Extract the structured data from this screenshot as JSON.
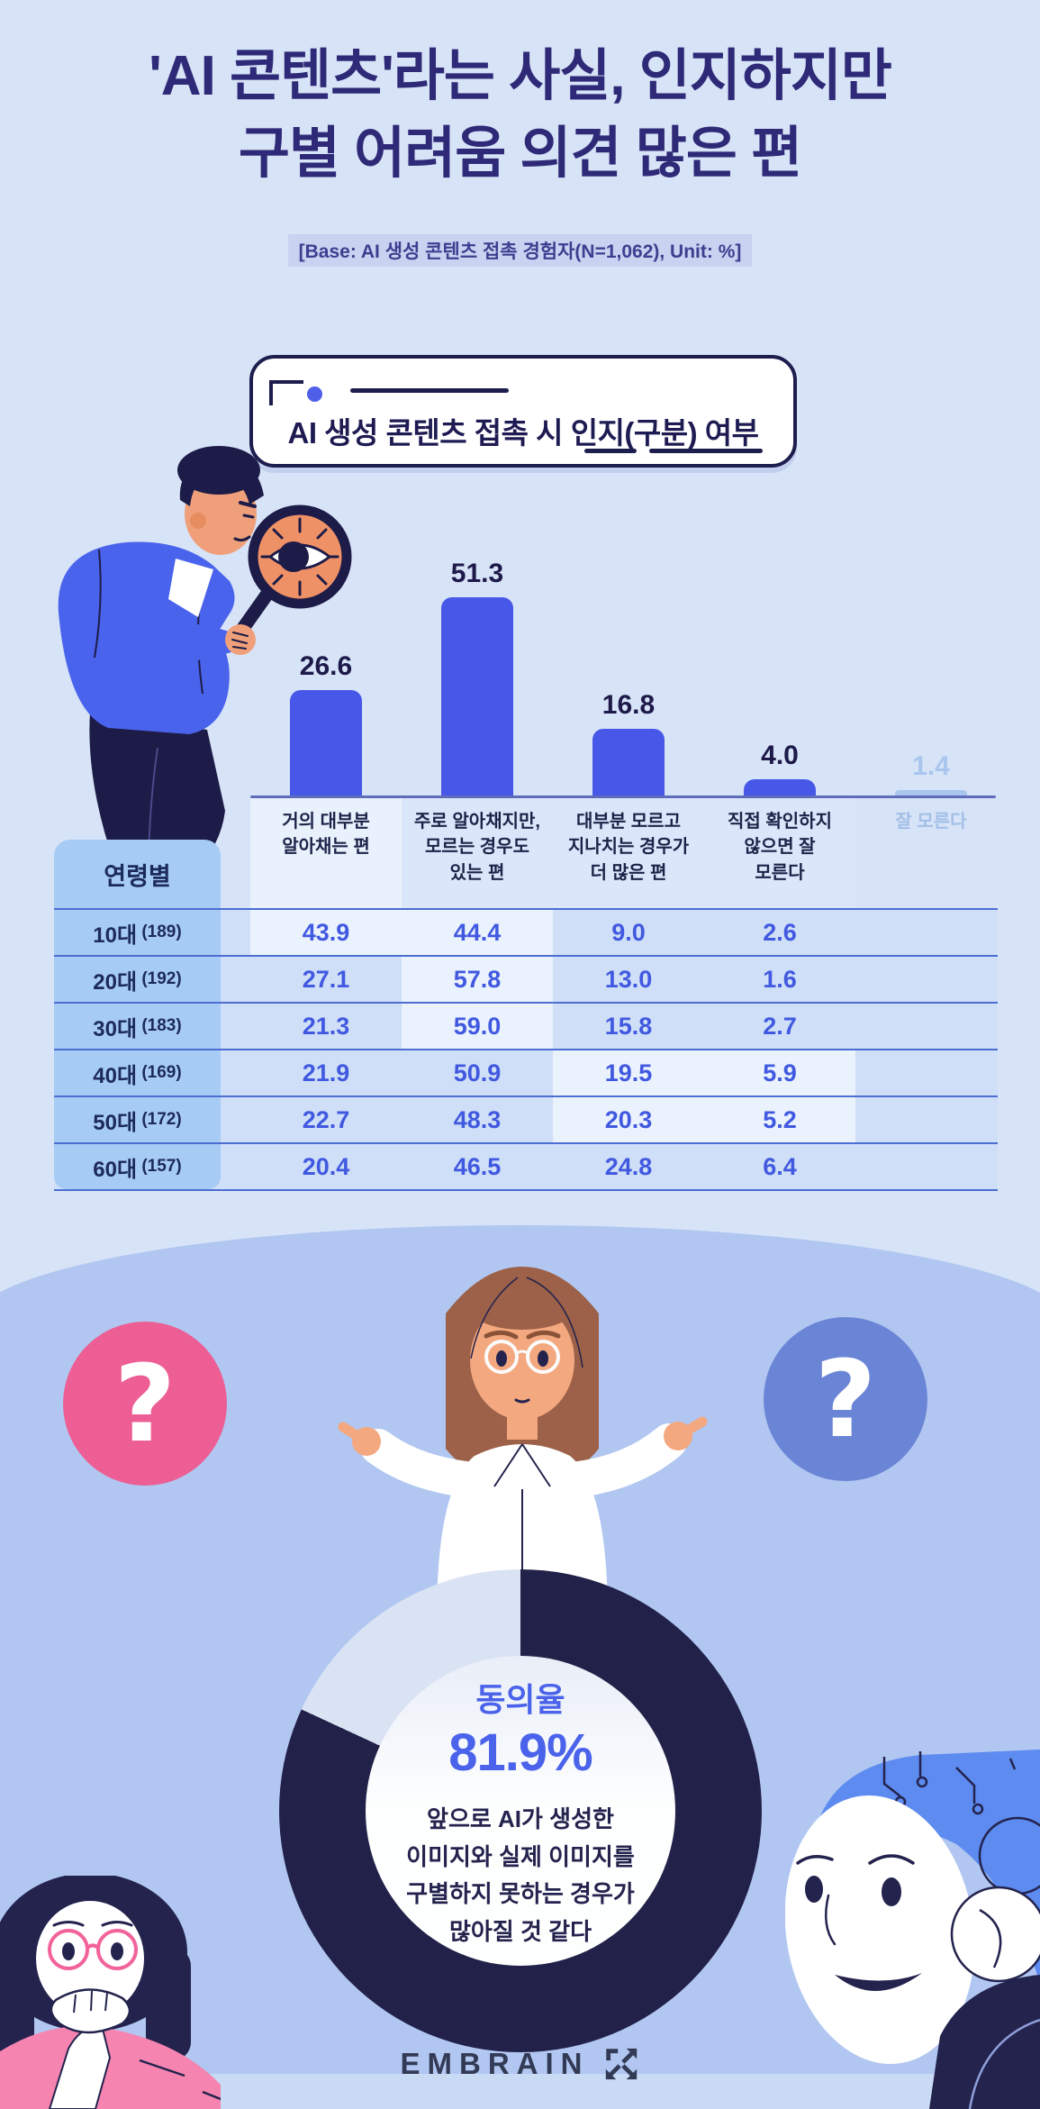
{
  "header": {
    "title_line1": "'AI 콘텐츠'라는 사실, 인지하지만",
    "title_line2": "구별 어려움 의견 많은 편",
    "base_note": "[Base: AI 생성 콘텐츠 접촉 경험자(N=1,062), Unit: %]"
  },
  "decor": {
    "question_mark": "?"
  },
  "footer": {
    "brand": "EMBRAIN"
  },
  "colors": {
    "background_top": "#d7e3f7",
    "background_bottom": "#b1c7f1",
    "title_navy": "#2e2a78",
    "bar_blue": "#4758e8",
    "bar_muted": "#a9c7ee",
    "table_value_blue": "#4159e0",
    "table_header_blue": "#a6cbf4",
    "ring_dark": "#222149",
    "ring_light": "#dae3f3",
    "accent_pink": "#ec5e94",
    "accent_periwinkle": "#6b85d6"
  },
  "chart_data": [
    {
      "type": "bar",
      "title": "AI 생성 콘텐츠 접촉 시 인지(구분) 여부",
      "unit": "%",
      "ylim": [
        0,
        55
      ],
      "grid": false,
      "categories": [
        "거의 대부분 알아채는 편",
        "주로 알아채지만, 모르는 경우도 있는 편",
        "대부분 모르고 지나치는 경우가 더 많은 편",
        "직접 확인하지 않으면 잘 모른다",
        "잘 모른다"
      ],
      "category_lines": [
        [
          "거의 대부분",
          "알아채는 편"
        ],
        [
          "주로 알아채지만,",
          "모르는 경우도",
          "있는 편"
        ],
        [
          "대부분 모르고",
          "지나치는 경우가",
          "더 많은 편"
        ],
        [
          "직접 확인하지",
          "않으면 잘",
          "모른다"
        ],
        [
          "잘 모른다"
        ]
      ],
      "values": [
        26.6,
        51.3,
        16.8,
        4.0,
        1.4
      ],
      "muted_indices": [
        4
      ],
      "by_age_table": {
        "group_header": "연령별",
        "columns": [
          "거의 대부분 알아채는 편",
          "주로 알아채지만, 모르는 경우도 있는 편",
          "대부분 모르고 지나치는 경우가 더 많은 편",
          "직접 확인하지 않으면 잘 모른다"
        ],
        "rows": [
          {
            "label": "10대",
            "n": "(189)",
            "values": [
              43.9,
              44.4,
              9.0,
              2.6
            ],
            "highlighted_cols": [
              0,
              1
            ]
          },
          {
            "label": "20대",
            "n": "(192)",
            "values": [
              27.1,
              57.8,
              13.0,
              1.6
            ],
            "highlighted_cols": [
              1
            ]
          },
          {
            "label": "30대",
            "n": "(183)",
            "values": [
              21.3,
              59.0,
              15.8,
              2.7
            ],
            "highlighted_cols": [
              1
            ]
          },
          {
            "label": "40대",
            "n": "(169)",
            "values": [
              21.9,
              50.9,
              19.5,
              5.9
            ],
            "highlighted_cols": [
              2,
              3
            ]
          },
          {
            "label": "50대",
            "n": "(172)",
            "values": [
              22.7,
              48.3,
              20.3,
              5.2
            ],
            "highlighted_cols": [
              2,
              3
            ]
          },
          {
            "label": "60대",
            "n": "(157)",
            "values": [
              20.4,
              46.5,
              24.8,
              6.4
            ],
            "highlighted_cols": []
          }
        ]
      }
    },
    {
      "type": "pie",
      "label": "동의율",
      "value_label": "81.9%",
      "slices": [
        {
          "label": "동의",
          "value": 81.9,
          "color": "#222149"
        },
        {
          "label": "",
          "value": 18.1,
          "color": "#dae3f3"
        }
      ],
      "statement_lines": [
        "앞으로 AI가 생성한",
        "이미지와 실제 이미지를",
        "구별하지 못하는 경우가",
        "많아질 것 같다"
      ]
    }
  ]
}
